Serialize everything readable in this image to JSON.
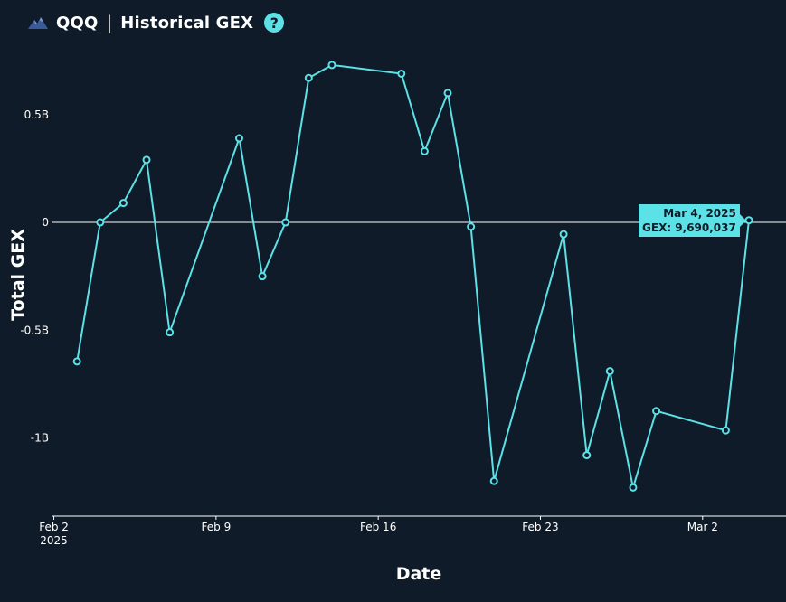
{
  "header": {
    "ticker": "QQQ",
    "separator": "|",
    "title": "Historical GEX",
    "help_symbol": "?"
  },
  "tooltip": {
    "date": "Mar 4, 2025",
    "value": "GEX: 9,690,037",
    "point_index": 29
  },
  "colors": {
    "background": "#0f1b28",
    "line": "#5ce1e6",
    "zero_line": "#ffffff"
  },
  "chart_data": {
    "type": "line",
    "xlabel": "Date",
    "ylabel": "Total GEX",
    "ylim": [
      -1.35,
      0.78
    ],
    "yticks": [
      {
        "value": 0.5,
        "label": "0.5B"
      },
      {
        "value": 0,
        "label": "0"
      },
      {
        "value": -0.5,
        "label": "-0.5B"
      },
      {
        "value": -1,
        "label": "-1B"
      }
    ],
    "xticks": [
      {
        "day": 2,
        "label": "Feb 2",
        "sublabel": "2025"
      },
      {
        "day": 9,
        "label": "Feb 9",
        "sublabel": ""
      },
      {
        "day": 16,
        "label": "Feb 16",
        "sublabel": ""
      },
      {
        "day": 23,
        "label": "Feb 23",
        "sublabel": ""
      },
      {
        "day": 30,
        "label": "Mar 2",
        "sublabel": ""
      }
    ],
    "xlim": [
      1.9,
      33.6
    ],
    "series": [
      {
        "points": [
          {
            "day": 3,
            "date": "2025-02-03",
            "value": -0.645
          },
          {
            "day": 4,
            "date": "2025-02-04",
            "value": 0.0
          },
          {
            "day": 5,
            "date": "2025-02-05",
            "value": 0.09
          },
          {
            "day": 6,
            "date": "2025-02-06",
            "value": 0.29
          },
          {
            "day": 7,
            "date": "2025-02-07",
            "value": -0.51
          },
          {
            "day": 10,
            "date": "2025-02-10",
            "value": 0.39
          },
          {
            "day": 11,
            "date": "2025-02-11",
            "value": -0.25
          },
          {
            "day": 12,
            "date": "2025-02-12",
            "value": 0.0
          },
          {
            "day": 13,
            "date": "2025-02-13",
            "value": 0.67
          },
          {
            "day": 14,
            "date": "2025-02-14",
            "value": 0.73
          },
          {
            "day": 17,
            "date": "2025-02-17",
            "value": 0.69
          },
          {
            "day": 18,
            "date": "2025-02-18",
            "value": 0.33
          },
          {
            "day": 19,
            "date": "2025-02-19",
            "value": 0.6
          },
          {
            "day": 20,
            "date": "2025-02-20",
            "value": -0.02
          },
          {
            "day": 21,
            "date": "2025-02-21",
            "value": -1.2
          },
          {
            "day": 24,
            "date": "2025-02-24",
            "value": -0.055
          },
          {
            "day": 25,
            "date": "2025-02-25",
            "value": -1.08
          },
          {
            "day": 26,
            "date": "2025-02-26",
            "value": -0.69
          },
          {
            "day": 27,
            "date": "2025-02-27",
            "value": -1.23
          },
          {
            "day": 28,
            "date": "2025-02-28",
            "value": -0.875
          },
          {
            "day": 31,
            "date": "2025-03-03",
            "value": -0.965
          },
          {
            "day": 32,
            "date": "2025-03-04",
            "value": 0.0097
          }
        ]
      }
    ]
  }
}
